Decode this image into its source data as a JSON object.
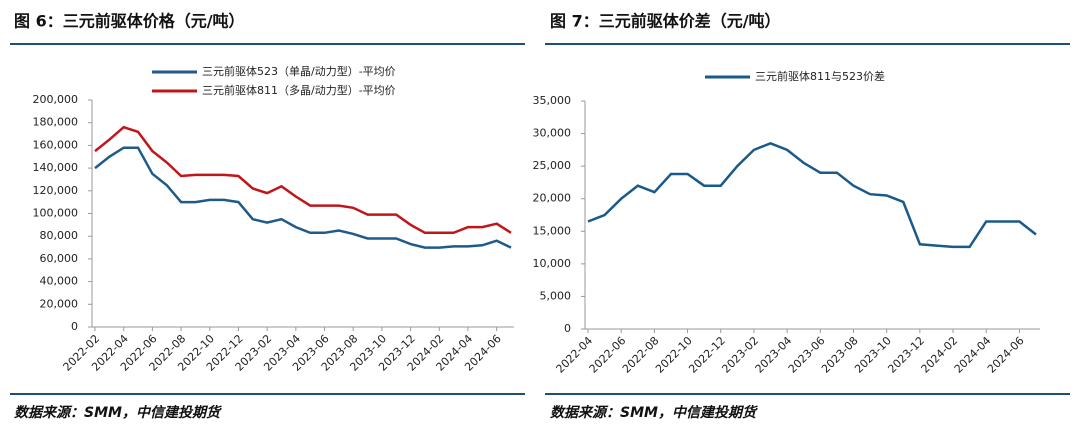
{
  "chart_data": [
    {
      "type": "line",
      "title": "图 6：三元前驱体价格（元/吨）",
      "source": "数据来源：SMM，中信建投期货",
      "legend": "top",
      "x": [
        "2022-02",
        "2022-03",
        "2022-04",
        "2022-05",
        "2022-06",
        "2022-07",
        "2022-08",
        "2022-09",
        "2022-10",
        "2022-11",
        "2022-12",
        "2023-01",
        "2023-02",
        "2023-03",
        "2023-04",
        "2023-05",
        "2023-06",
        "2023-07",
        "2023-08",
        "2023-09",
        "2023-10",
        "2023-11",
        "2023-12",
        "2024-01",
        "2024-02",
        "2024-03",
        "2024-04",
        "2024-05",
        "2024-06",
        "2024-07"
      ],
      "xticks": [
        "2022-02",
        "2022-04",
        "2022-06",
        "2022-08",
        "2022-10",
        "2022-12",
        "2023-02",
        "2023-04",
        "2023-06",
        "2023-08",
        "2023-10",
        "2023-12",
        "2024-02",
        "2024-04",
        "2024-06"
      ],
      "series": [
        {
          "name": "三元前驱体523（单晶/动力型）-平均价",
          "color": "#1f5a89",
          "values": [
            140000,
            150000,
            158000,
            158000,
            135000,
            125000,
            110000,
            110000,
            112000,
            112000,
            110000,
            95000,
            92000,
            95000,
            88000,
            83000,
            83000,
            85000,
            82000,
            78000,
            78000,
            78000,
            73000,
            70000,
            70000,
            71000,
            71000,
            72000,
            76000,
            70000
          ]
        },
        {
          "name": "三元前驱体811（多晶/动力型）-平均价",
          "color": "#c0161b",
          "values": [
            155000,
            165000,
            176000,
            172000,
            155000,
            145000,
            133000,
            134000,
            134000,
            134000,
            133000,
            122000,
            118000,
            124000,
            115000,
            107000,
            107000,
            107000,
            105000,
            99000,
            99000,
            99000,
            90000,
            83000,
            83000,
            83000,
            88000,
            88000,
            91000,
            83000
          ]
        }
      ],
      "ylim": [
        0,
        200000
      ],
      "yticks": [
        0,
        {
          "value": 20000,
          "label": "20,000"
        },
        {
          "value": 40000,
          "label": "40,000"
        },
        {
          "value": 60000,
          "label": "60,000"
        },
        {
          "value": 80000,
          "label": "80,000"
        },
        {
          "value": 100000,
          "label": "100,000"
        },
        {
          "value": 120000,
          "label": "120,000"
        },
        {
          "value": 140000,
          "label": "140,000"
        },
        {
          "value": 160000,
          "label": "160,000"
        },
        {
          "value": 180000,
          "label": "180,000"
        },
        {
          "value": 200000,
          "label": "200,000"
        }
      ]
    },
    {
      "type": "line",
      "title": "图 7：三元前驱体价差（元/吨）",
      "source": "数据来源：SMM，中信建投期货",
      "legend": "top",
      "x": [
        "2022-04",
        "2022-05",
        "2022-06",
        "2022-07",
        "2022-08",
        "2022-09",
        "2022-10",
        "2022-11",
        "2022-12",
        "2023-01",
        "2023-02",
        "2023-03",
        "2023-04",
        "2023-05",
        "2023-06",
        "2023-07",
        "2023-08",
        "2023-09",
        "2023-10",
        "2023-11",
        "2023-12",
        "2024-01",
        "2024-02",
        "2024-03",
        "2024-04",
        "2024-05",
        "2024-06",
        "2024-07"
      ],
      "xticks": [
        "2022-04",
        "2022-06",
        "2022-08",
        "2022-10",
        "2022-12",
        "2023-02",
        "2023-04",
        "2023-06",
        "2023-08",
        "2023-10",
        "2023-12",
        "2024-02",
        "2024-04",
        "2024-06"
      ],
      "series": [
        {
          "name": "三元前驱体811与523价差",
          "color": "#1a5a8a",
          "values": [
            16500,
            17500,
            20000,
            22000,
            21000,
            23800,
            23800,
            22000,
            22000,
            25000,
            27500,
            28500,
            27500,
            25500,
            24000,
            24000,
            22000,
            20700,
            20500,
            19500,
            13000,
            12800,
            12600,
            12600,
            16500,
            16500,
            16500,
            14500
          ]
        }
      ],
      "ylim": [
        0,
        35000
      ],
      "yticks": [
        0,
        {
          "value": 5000,
          "label": "5,000"
        },
        {
          "value": 10000,
          "label": "10,000"
        },
        {
          "value": 15000,
          "label": "15,000"
        },
        {
          "value": 20000,
          "label": "20,000"
        },
        {
          "value": 25000,
          "label": "25,000"
        },
        {
          "value": 30000,
          "label": "30,000"
        },
        {
          "value": 35000,
          "label": "35,000"
        }
      ]
    }
  ]
}
